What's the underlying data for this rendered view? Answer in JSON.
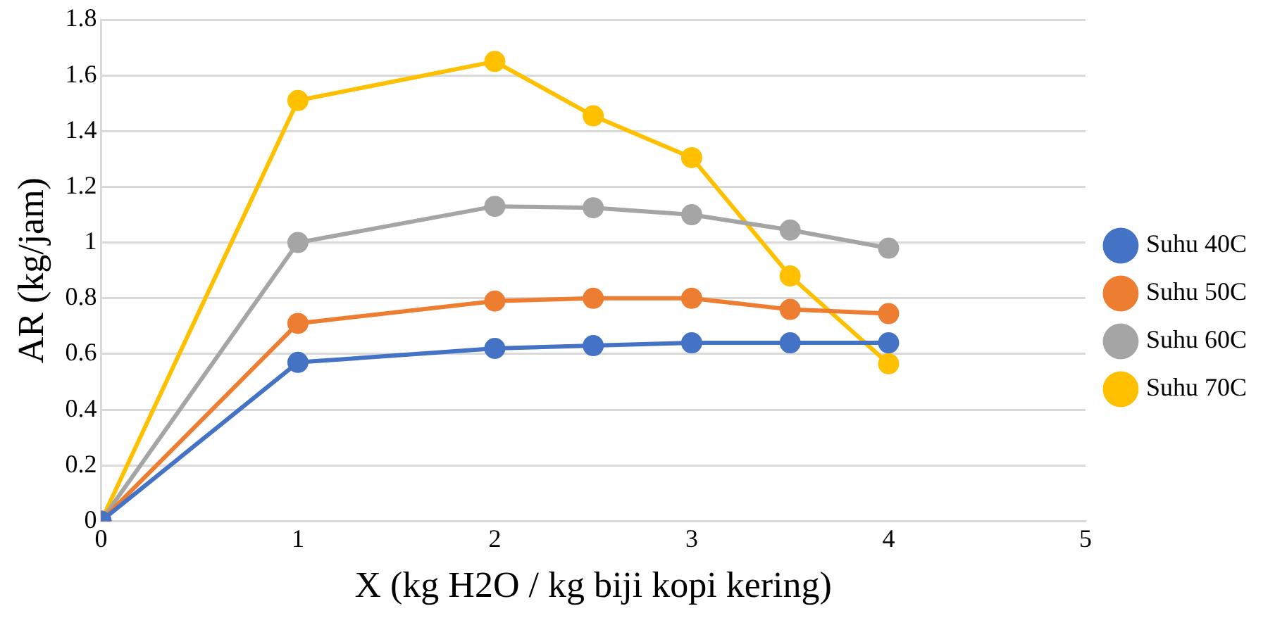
{
  "chart_data": {
    "type": "line",
    "xlabel": "X (kg H2O / kg biji kopi kering)",
    "ylabel": "AR (kg/jam)",
    "x": [
      0,
      1,
      2,
      2.5,
      3,
      3.5,
      4
    ],
    "series": [
      {
        "name": "Suhu 40C",
        "color": "#4472c4",
        "values": [
          0,
          0.57,
          0.62,
          0.63,
          0.64,
          0.64,
          0.64
        ]
      },
      {
        "name": "Suhu 50C",
        "color": "#ed7d31",
        "values": [
          0,
          0.71,
          0.79,
          0.8,
          0.8,
          0.76,
          0.745
        ]
      },
      {
        "name": "Suhu 60C",
        "color": "#a5a5a5",
        "values": [
          0,
          1,
          1.13,
          1.125,
          1.1,
          1.045,
          0.98
        ]
      },
      {
        "name": "Suhu 70C",
        "color": "#ffc000",
        "values": [
          0,
          1.51,
          1.65,
          1.455,
          1.305,
          0.88,
          0.565
        ]
      }
    ],
    "xlim": [
      0,
      5
    ],
    "xticks": [
      0,
      1,
      2,
      3,
      4,
      5
    ],
    "ylim": [
      0,
      1.8
    ],
    "yticks": [
      0,
      0.2,
      0.4,
      0.6,
      0.8,
      1,
      1.2,
      1.4,
      1.6,
      1.8
    ],
    "grid": "y",
    "legend": "right",
    "marker": "circle",
    "line_style": "solid"
  }
}
